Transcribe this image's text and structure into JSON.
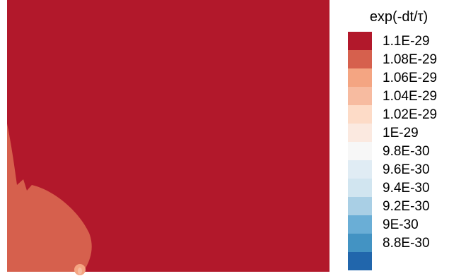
{
  "chart_data": {
    "type": "heatmap",
    "title": "",
    "xlabel": "",
    "ylabel": "",
    "colorbar": {
      "title": "exp(-dt/τ)",
      "levels": [
        {
          "label": "1.1E-29",
          "value": 1.1e-29,
          "color": "#b2182b"
        },
        {
          "label": "1.08E-29",
          "value": 1.08e-29,
          "color": "#d6604d"
        },
        {
          "label": "1.06E-29",
          "value": 1.06e-29,
          "color": "#f4a582"
        },
        {
          "label": "1.04E-29",
          "value": 1.04e-29,
          "color": "#f7bba0"
        },
        {
          "label": "1.02E-29",
          "value": 1.02e-29,
          "color": "#fddbc7"
        },
        {
          "label": "1E-29",
          "value": 1e-29,
          "color": "#fbe9e0"
        },
        {
          "label": "9.8E-30",
          "value": 9.8e-30,
          "color": "#f7f7f7"
        },
        {
          "label": "9.6E-30",
          "value": 9.6e-30,
          "color": "#e0ecf4"
        },
        {
          "label": "9.4E-30",
          "value": 9.4e-30,
          "color": "#d1e5f0"
        },
        {
          "label": "9.2E-30",
          "value": 9.2e-30,
          "color": "#a9cfe5"
        },
        {
          "label": "9E-30",
          "value": 9e-30,
          "color": "#6aaed6"
        },
        {
          "label": "8.8E-30",
          "value": 8.8e-30,
          "color": "#4393c3"
        },
        {
          "label": "",
          "value": 8.6e-30,
          "color": "#2166ac"
        }
      ]
    },
    "field": {
      "background_level": "1.1E-29",
      "regions": [
        {
          "level": "1.08E-29",
          "description": "lower-left lobe"
        },
        {
          "level": "1.06E-29",
          "description": "small spot near bottom edge"
        },
        {
          "level": "1.04E-29",
          "description": "tiny core of spot"
        }
      ]
    }
  }
}
